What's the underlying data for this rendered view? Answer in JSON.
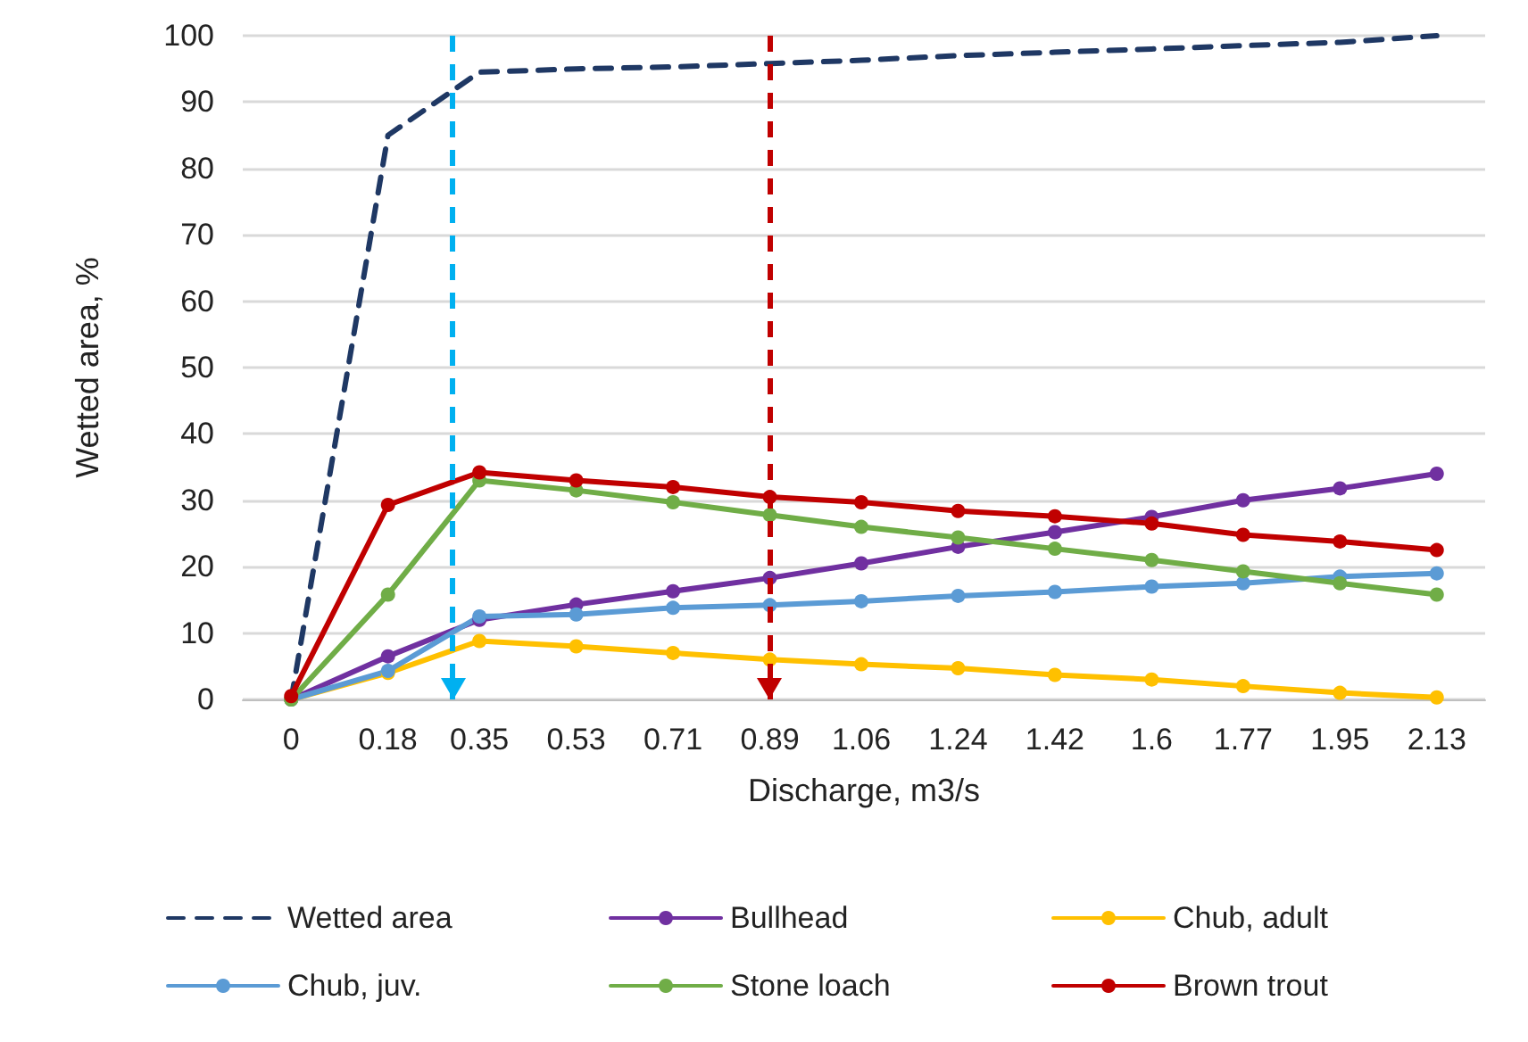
{
  "chart_data": {
    "type": "line",
    "xlabel": "Discharge, m3/s",
    "ylabel": "Wetted area, %",
    "x": [
      0,
      0.18,
      0.35,
      0.53,
      0.71,
      0.89,
      1.06,
      1.24,
      1.42,
      1.6,
      1.77,
      1.95,
      2.13
    ],
    "xlim": [
      -0.09,
      2.22
    ],
    "xticks": [
      0,
      0.18,
      0.35,
      0.53,
      0.71,
      0.89,
      1.06,
      1.24,
      1.42,
      1.6,
      1.77,
      1.95,
      2.13
    ],
    "ylim": [
      0,
      100
    ],
    "yticks": [
      0,
      10,
      20,
      30,
      40,
      50,
      60,
      70,
      80,
      90,
      100
    ],
    "grid": "y",
    "legend": "bottom",
    "marker": "circle",
    "series": [
      {
        "name": "Wetted area",
        "color": "#1f3864",
        "line_style": "dashed",
        "marker": "none",
        "values": [
          0,
          85,
          94.5,
          95,
          95.3,
          95.8,
          96.3,
          97,
          97.5,
          98,
          98.5,
          99,
          100
        ]
      },
      {
        "name": "Bullhead",
        "color": "#7030a0",
        "values": [
          0,
          6.5,
          12,
          14.3,
          16.3,
          18.3,
          20.5,
          23,
          25.2,
          27.5,
          30,
          31.8,
          34
        ]
      },
      {
        "name": "Chub, adult",
        "color": "#ffc000",
        "values": [
          0,
          4,
          8.8,
          8,
          7,
          6,
          5.3,
          4.7,
          3.7,
          3,
          2,
          1,
          0.3
        ]
      },
      {
        "name": "Chub, juv.",
        "color": "#5b9bd5",
        "values": [
          0,
          4.3,
          12.5,
          12.8,
          13.8,
          14.2,
          14.8,
          15.6,
          16.2,
          17,
          17.5,
          18.5,
          19
        ]
      },
      {
        "name": "Stone loach",
        "color": "#70ad47",
        "values": [
          0,
          15.8,
          33,
          31.5,
          29.7,
          27.8,
          26,
          24.4,
          22.7,
          21,
          19.3,
          17.5,
          15.8
        ]
      },
      {
        "name": "Brown trout",
        "color": "#c00000",
        "values": [
          0.5,
          29.3,
          34.2,
          33,
          32,
          30.5,
          29.7,
          28.4,
          27.6,
          26.5,
          24.8,
          23.8,
          22.5
        ]
      }
    ],
    "ref_lines": [
      {
        "axis": "x",
        "value": 0.3,
        "color": "#00b0f0",
        "line_style": "dashed"
      },
      {
        "axis": "x",
        "value": 0.89,
        "color": "#c00000",
        "line_style": "dashed"
      }
    ]
  }
}
